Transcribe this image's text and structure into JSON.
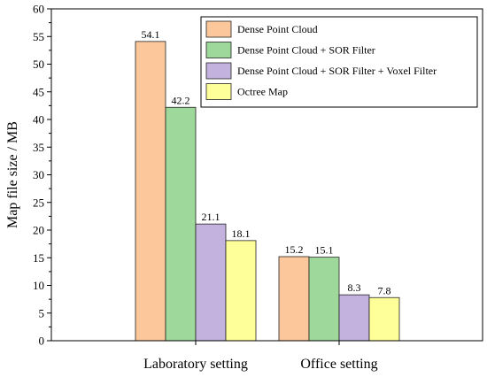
{
  "chart_data": {
    "type": "bar",
    "categories": [
      "Laboratory setting",
      "Office setting"
    ],
    "series": [
      {
        "name": "Dense Point Cloud",
        "values": [
          54.1,
          15.2
        ],
        "color": "#FCC89B"
      },
      {
        "name": "Dense Point Cloud + SOR Filter",
        "values": [
          42.2,
          15.1
        ],
        "color": "#9ED89B"
      },
      {
        "name": "Dense Point Cloud + SOR Filter + Voxel Filter",
        "values": [
          21.1,
          8.3
        ],
        "color": "#C2B2DD"
      },
      {
        "name": "Octree Map",
        "values": [
          18.1,
          7.8
        ],
        "color": "#FFFF99"
      }
    ],
    "data_labels": [
      [
        "54.1",
        "15.2"
      ],
      [
        "42.2",
        "15.1"
      ],
      [
        "21.1",
        "8.3"
      ],
      [
        "18.1",
        "7.8"
      ]
    ],
    "ylabel": "Map file size / MB",
    "xlabel": "",
    "ylim": [
      0,
      60
    ],
    "yticks": [
      "0",
      "5",
      "10",
      "15",
      "20",
      "25",
      "30",
      "35",
      "40",
      "45",
      "50",
      "55",
      "60"
    ],
    "legend_position": "top-right",
    "grid": false
  }
}
